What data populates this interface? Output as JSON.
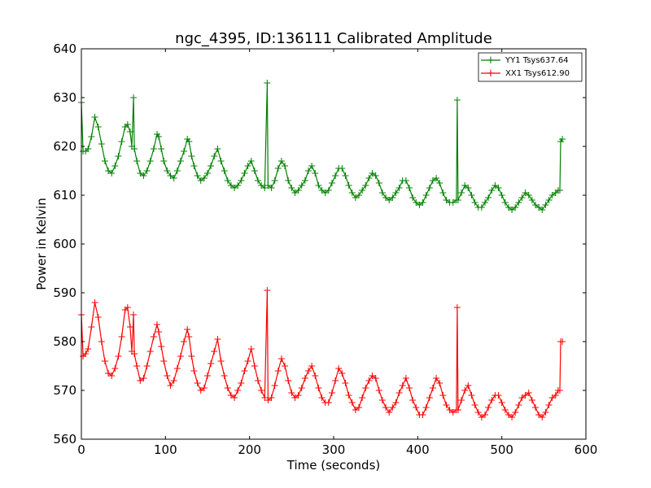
{
  "chart_data": {
    "type": "line",
    "title": "ngc_4395, ID:136111 Calibrated Amplitude",
    "xlabel": "Time (seconds)",
    "ylabel": "Power in Kelvin",
    "xlim": [
      0,
      600
    ],
    "ylim": [
      560,
      640
    ],
    "xticks": [
      "0",
      "100",
      "200",
      "300",
      "400",
      "500",
      "600"
    ],
    "yticks": [
      "560",
      "570",
      "580",
      "590",
      "600",
      "610",
      "620",
      "630",
      "640"
    ],
    "grid": false,
    "legend_position": "top-right",
    "marker": "+",
    "series": [
      {
        "name": "YY1 Tsys637.64",
        "color": "#008000",
        "points": [
          [
            0,
            629
          ],
          [
            2,
            619
          ],
          [
            5,
            619
          ],
          [
            8,
            619.5
          ],
          [
            12,
            622
          ],
          [
            16,
            626
          ],
          [
            20,
            624
          ],
          [
            24,
            620.5
          ],
          [
            28,
            617
          ],
          [
            32,
            615
          ],
          [
            36,
            614.5
          ],
          [
            40,
            616
          ],
          [
            44,
            618
          ],
          [
            48,
            621
          ],
          [
            52,
            624
          ],
          [
            55,
            624.5
          ],
          [
            58,
            623
          ],
          [
            60,
            620
          ],
          [
            62,
            630
          ],
          [
            63,
            619.5
          ],
          [
            66,
            617
          ],
          [
            70,
            614.5
          ],
          [
            74,
            614
          ],
          [
            78,
            615
          ],
          [
            82,
            617
          ],
          [
            86,
            619.5
          ],
          [
            90,
            622.5
          ],
          [
            92,
            622
          ],
          [
            95,
            619.5
          ],
          [
            98,
            617
          ],
          [
            102,
            615
          ],
          [
            106,
            614
          ],
          [
            110,
            613.5
          ],
          [
            114,
            615
          ],
          [
            118,
            617
          ],
          [
            122,
            619
          ],
          [
            126,
            621.5
          ],
          [
            128,
            621
          ],
          [
            131,
            618
          ],
          [
            134,
            616
          ],
          [
            138,
            614
          ],
          [
            142,
            613
          ],
          [
            146,
            613.5
          ],
          [
            150,
            614.5
          ],
          [
            154,
            616
          ],
          [
            158,
            618
          ],
          [
            162,
            619.5
          ],
          [
            166,
            617
          ],
          [
            170,
            615
          ],
          [
            174,
            613
          ],
          [
            178,
            612
          ],
          [
            182,
            611.5
          ],
          [
            186,
            612
          ],
          [
            190,
            613
          ],
          [
            194,
            614.5
          ],
          [
            198,
            616
          ],
          [
            202,
            617
          ],
          [
            206,
            615
          ],
          [
            210,
            613
          ],
          [
            214,
            612
          ],
          [
            218,
            611.5
          ],
          [
            221,
            633
          ],
          [
            222,
            612
          ],
          [
            226,
            611.5
          ],
          [
            230,
            613
          ],
          [
            234,
            615.5
          ],
          [
            238,
            617
          ],
          [
            242,
            616
          ],
          [
            246,
            613
          ],
          [
            250,
            611.5
          ],
          [
            254,
            610.5
          ],
          [
            258,
            611
          ],
          [
            262,
            612
          ],
          [
            266,
            613
          ],
          [
            270,
            615
          ],
          [
            274,
            616
          ],
          [
            278,
            614.5
          ],
          [
            282,
            612
          ],
          [
            286,
            611
          ],
          [
            290,
            610.5
          ],
          [
            294,
            611
          ],
          [
            298,
            612.5
          ],
          [
            302,
            614
          ],
          [
            306,
            615.5
          ],
          [
            310,
            615.5
          ],
          [
            314,
            614
          ],
          [
            318,
            612
          ],
          [
            322,
            610.5
          ],
          [
            326,
            609.5
          ],
          [
            330,
            610
          ],
          [
            334,
            611
          ],
          [
            338,
            612
          ],
          [
            342,
            613.5
          ],
          [
            346,
            614.5
          ],
          [
            350,
            614
          ],
          [
            354,
            612.5
          ],
          [
            358,
            610.5
          ],
          [
            362,
            609.5
          ],
          [
            366,
            609
          ],
          [
            370,
            609.5
          ],
          [
            374,
            610.5
          ],
          [
            378,
            611.5
          ],
          [
            382,
            613
          ],
          [
            386,
            613
          ],
          [
            390,
            611.5
          ],
          [
            394,
            609.5
          ],
          [
            398,
            608.5
          ],
          [
            402,
            608
          ],
          [
            406,
            608.5
          ],
          [
            410,
            610
          ],
          [
            414,
            611.5
          ],
          [
            418,
            613
          ],
          [
            422,
            613.5
          ],
          [
            426,
            612.5
          ],
          [
            430,
            610.5
          ],
          [
            434,
            609
          ],
          [
            438,
            608.5
          ],
          [
            442,
            608.5
          ],
          [
            446,
            609
          ],
          [
            447,
            629.5
          ],
          [
            448,
            609
          ],
          [
            452,
            610.5
          ],
          [
            456,
            612
          ],
          [
            460,
            611.5
          ],
          [
            464,
            610
          ],
          [
            468,
            608.5
          ],
          [
            472,
            607.5
          ],
          [
            476,
            607.5
          ],
          [
            480,
            608.5
          ],
          [
            484,
            609.5
          ],
          [
            488,
            611
          ],
          [
            492,
            612
          ],
          [
            496,
            611.5
          ],
          [
            500,
            610
          ],
          [
            504,
            608.5
          ],
          [
            508,
            607.5
          ],
          [
            512,
            607
          ],
          [
            516,
            607.5
          ],
          [
            520,
            608.5
          ],
          [
            524,
            609.5
          ],
          [
            528,
            610.5
          ],
          [
            532,
            610
          ],
          [
            536,
            609
          ],
          [
            540,
            608
          ],
          [
            544,
            607.5
          ],
          [
            548,
            607
          ],
          [
            552,
            608
          ],
          [
            556,
            609
          ],
          [
            560,
            610
          ],
          [
            564,
            610.5
          ],
          [
            567,
            611
          ],
          [
            569,
            611
          ],
          [
            570,
            621
          ],
          [
            572,
            621.5
          ]
        ]
      },
      {
        "name": "XX1 Tsys612.90",
        "color": "#ff0000",
        "points": [
          [
            0,
            585.5
          ],
          [
            2,
            577
          ],
          [
            5,
            577.5
          ],
          [
            8,
            578.5
          ],
          [
            12,
            583
          ],
          [
            16,
            588
          ],
          [
            20,
            585
          ],
          [
            24,
            580
          ],
          [
            28,
            576
          ],
          [
            32,
            573.5
          ],
          [
            36,
            573
          ],
          [
            40,
            574.5
          ],
          [
            44,
            577
          ],
          [
            48,
            581
          ],
          [
            52,
            586.5
          ],
          [
            55,
            587
          ],
          [
            58,
            583
          ],
          [
            60,
            578
          ],
          [
            62,
            585.5
          ],
          [
            63,
            577.5
          ],
          [
            66,
            575
          ],
          [
            70,
            572
          ],
          [
            74,
            572.5
          ],
          [
            78,
            575
          ],
          [
            82,
            578
          ],
          [
            86,
            581
          ],
          [
            90,
            583.5
          ],
          [
            92,
            582
          ],
          [
            95,
            579
          ],
          [
            98,
            576
          ],
          [
            102,
            573
          ],
          [
            106,
            571
          ],
          [
            110,
            572
          ],
          [
            114,
            574.5
          ],
          [
            118,
            577
          ],
          [
            122,
            580
          ],
          [
            126,
            582.5
          ],
          [
            128,
            581
          ],
          [
            131,
            577
          ],
          [
            134,
            574
          ],
          [
            138,
            571.5
          ],
          [
            142,
            570
          ],
          [
            146,
            570.5
          ],
          [
            150,
            573
          ],
          [
            154,
            575.5
          ],
          [
            158,
            578
          ],
          [
            162,
            580.5
          ],
          [
            166,
            576
          ],
          [
            170,
            573
          ],
          [
            174,
            570.5
          ],
          [
            178,
            569
          ],
          [
            182,
            568.5
          ],
          [
            186,
            570
          ],
          [
            190,
            571.5
          ],
          [
            194,
            574
          ],
          [
            198,
            576
          ],
          [
            202,
            578.5
          ],
          [
            206,
            575
          ],
          [
            210,
            572
          ],
          [
            214,
            570
          ],
          [
            218,
            568.5
          ],
          [
            221,
            590.5
          ],
          [
            222,
            568
          ],
          [
            226,
            568.5
          ],
          [
            230,
            571
          ],
          [
            234,
            574
          ],
          [
            238,
            576.5
          ],
          [
            242,
            575
          ],
          [
            246,
            572
          ],
          [
            250,
            569.5
          ],
          [
            254,
            568.5
          ],
          [
            258,
            569
          ],
          [
            262,
            570.5
          ],
          [
            266,
            572.5
          ],
          [
            270,
            574
          ],
          [
            274,
            575
          ],
          [
            278,
            573
          ],
          [
            282,
            570.5
          ],
          [
            286,
            568.5
          ],
          [
            290,
            567.5
          ],
          [
            294,
            567.5
          ],
          [
            298,
            569.5
          ],
          [
            302,
            572
          ],
          [
            306,
            574.5
          ],
          [
            310,
            573.5
          ],
          [
            314,
            571.5
          ],
          [
            318,
            569
          ],
          [
            322,
            567.5
          ],
          [
            326,
            566
          ],
          [
            330,
            566.5
          ],
          [
            334,
            568.5
          ],
          [
            338,
            570.5
          ],
          [
            342,
            572
          ],
          [
            346,
            573
          ],
          [
            350,
            572.5
          ],
          [
            354,
            570
          ],
          [
            358,
            568
          ],
          [
            362,
            566.5
          ],
          [
            366,
            565.5
          ],
          [
            370,
            566.5
          ],
          [
            374,
            567.5
          ],
          [
            378,
            569.5
          ],
          [
            382,
            571
          ],
          [
            386,
            572.5
          ],
          [
            390,
            570.5
          ],
          [
            394,
            568
          ],
          [
            398,
            566.5
          ],
          [
            402,
            565
          ],
          [
            406,
            565
          ],
          [
            410,
            566.5
          ],
          [
            414,
            568.5
          ],
          [
            418,
            570.5
          ],
          [
            422,
            572.5
          ],
          [
            426,
            571.5
          ],
          [
            430,
            569
          ],
          [
            434,
            567
          ],
          [
            438,
            566
          ],
          [
            442,
            565.5
          ],
          [
            446,
            566
          ],
          [
            447,
            587
          ],
          [
            448,
            566
          ],
          [
            452,
            568
          ],
          [
            456,
            570
          ],
          [
            460,
            571
          ],
          [
            464,
            569
          ],
          [
            468,
            567
          ],
          [
            472,
            565.5
          ],
          [
            476,
            564.5
          ],
          [
            480,
            565
          ],
          [
            484,
            566.5
          ],
          [
            488,
            568
          ],
          [
            492,
            569
          ],
          [
            496,
            569
          ],
          [
            500,
            567.5
          ],
          [
            504,
            566
          ],
          [
            508,
            565
          ],
          [
            512,
            564.5
          ],
          [
            516,
            565.5
          ],
          [
            520,
            567
          ],
          [
            524,
            568.5
          ],
          [
            528,
            569
          ],
          [
            532,
            569.5
          ],
          [
            536,
            568
          ],
          [
            540,
            566.5
          ],
          [
            544,
            565
          ],
          [
            548,
            564.5
          ],
          [
            552,
            565.5
          ],
          [
            556,
            567
          ],
          [
            560,
            568.5
          ],
          [
            564,
            569
          ],
          [
            567,
            570
          ],
          [
            569,
            570
          ],
          [
            570,
            580
          ],
          [
            572,
            580
          ]
        ]
      }
    ]
  }
}
